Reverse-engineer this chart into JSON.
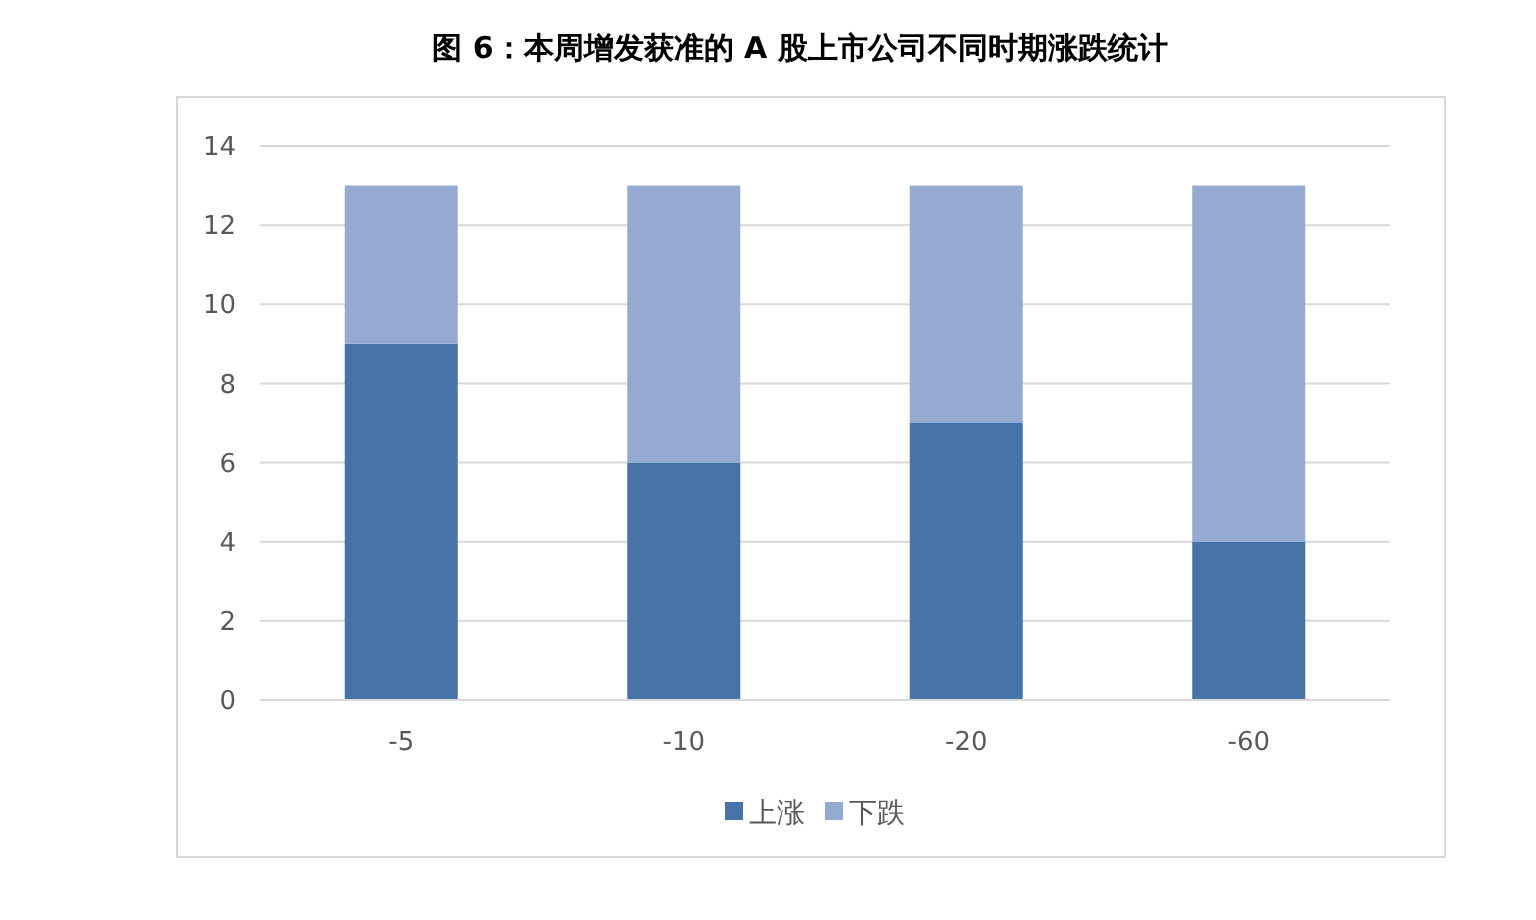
{
  "chart_data": {
    "type": "bar",
    "title": "图 6：本周增发获准的 A 股上市公司不同时期涨跌统计",
    "categories": [
      "-5",
      "-10",
      "-20",
      "-60"
    ],
    "series": [
      {
        "name": "上涨",
        "color": "#4674a8",
        "values": [
          9,
          6,
          7,
          4
        ]
      },
      {
        "name": "下跌",
        "color": "#95aad0",
        "values": [
          4,
          7,
          6,
          9
        ]
      }
    ],
    "stacked": true,
    "ylim": [
      0,
      14
    ],
    "yticks": [
      0,
      2,
      4,
      6,
      8,
      10,
      12,
      14
    ],
    "grid": "y",
    "legend": "bottom"
  }
}
